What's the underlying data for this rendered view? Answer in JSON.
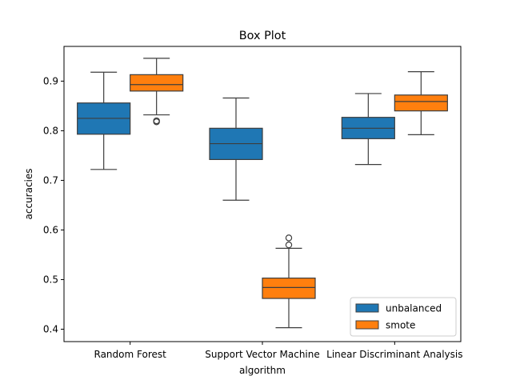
{
  "chart_data": {
    "type": "box",
    "title": "Box Plot",
    "xlabel": "algorithm",
    "ylabel": "accuracies",
    "ylim": [
      0.375,
      0.97
    ],
    "yticks": [
      0.4,
      0.5,
      0.6,
      0.7,
      0.8,
      0.9
    ],
    "categories": [
      "Random Forest",
      "Support Vector Machine",
      "Linear Discriminant Analysis"
    ],
    "legend_position": "lower-right",
    "grid": false,
    "series": [
      {
        "name": "unbalanced",
        "color": "#1f77b4",
        "boxes": [
          {
            "whisker_low": 0.722,
            "q1": 0.793,
            "median": 0.825,
            "q3": 0.856,
            "whisker_high": 0.918,
            "outliers": []
          },
          {
            "whisker_low": 0.66,
            "q1": 0.742,
            "median": 0.774,
            "q3": 0.805,
            "whisker_high": 0.866,
            "outliers": []
          },
          {
            "whisker_low": 0.732,
            "q1": 0.784,
            "median": 0.805,
            "q3": 0.827,
            "whisker_high": 0.875,
            "outliers": []
          }
        ]
      },
      {
        "name": "smote",
        "color": "#ff7f0e",
        "boxes": [
          {
            "whisker_low": 0.832,
            "q1": 0.88,
            "median": 0.893,
            "q3": 0.913,
            "whisker_high": 0.946,
            "outliers": [
              0.818,
              0.82
            ]
          },
          {
            "whisker_low": 0.403,
            "q1": 0.462,
            "median": 0.484,
            "q3": 0.503,
            "whisker_high": 0.563,
            "outliers": [
              0.57,
              0.584
            ]
          },
          {
            "whisker_low": 0.792,
            "q1": 0.84,
            "median": 0.859,
            "q3": 0.872,
            "whisker_high": 0.919,
            "outliers": []
          }
        ]
      }
    ]
  }
}
